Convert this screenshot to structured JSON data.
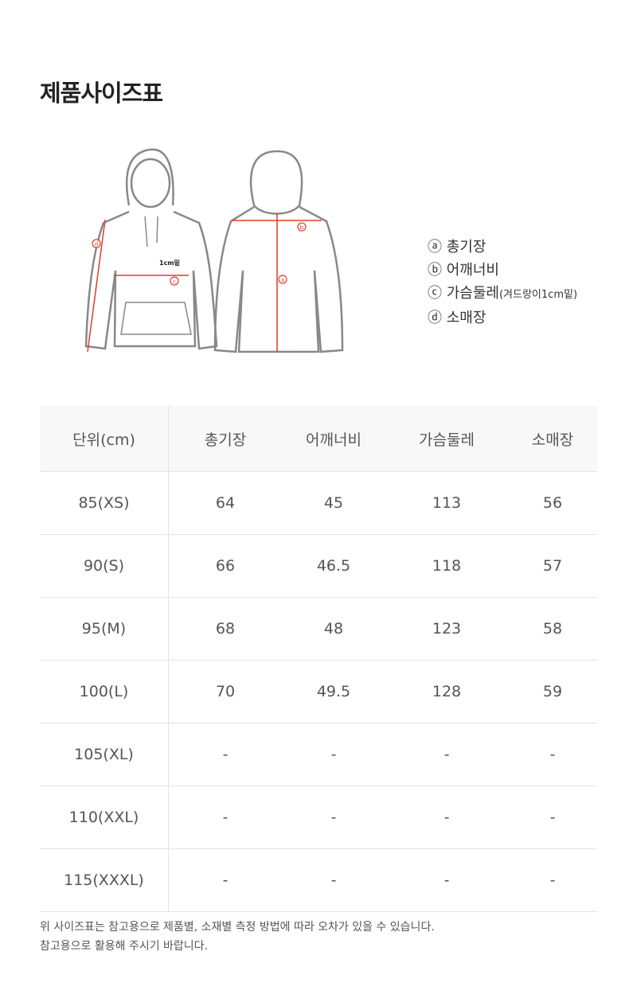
{
  "title": "제품사이즈표",
  "figure": {
    "front_note": "1cm밑",
    "markers": [
      "a",
      "b",
      "c",
      "d"
    ],
    "marker_color": "#e03c28"
  },
  "legend": [
    {
      "mark": "ⓐ",
      "label": "총기장",
      "note": ""
    },
    {
      "mark": "ⓑ",
      "label": "어깨너비",
      "note": ""
    },
    {
      "mark": "ⓒ",
      "label": "가슴둘레",
      "note": "(겨드랑이1cm밑)"
    },
    {
      "mark": "ⓓ",
      "label": "소매장",
      "note": ""
    }
  ],
  "table": {
    "headers": [
      "단위(cm)",
      "총기장",
      "어깨너비",
      "가슴둘레",
      "소매장"
    ],
    "rows": [
      [
        "85(XS)",
        "64",
        "45",
        "113",
        "56"
      ],
      [
        "90(S)",
        "66",
        "46.5",
        "118",
        "57"
      ],
      [
        "95(M)",
        "68",
        "48",
        "123",
        "58"
      ],
      [
        "100(L)",
        "70",
        "49.5",
        "128",
        "59"
      ],
      [
        "105(XL)",
        "-",
        "-",
        "-",
        "-"
      ],
      [
        "110(XXL)",
        "-",
        "-",
        "-",
        "-"
      ],
      [
        "115(XXXL)",
        "-",
        "-",
        "-",
        "-"
      ]
    ]
  },
  "notes": [
    "위 사이즈표는 참고용으로 제품별, 소재별 측정 방법에 따라 오차가 있을 수 있습니다.",
    "참고용으로 활용해 주시기 바랍니다."
  ]
}
